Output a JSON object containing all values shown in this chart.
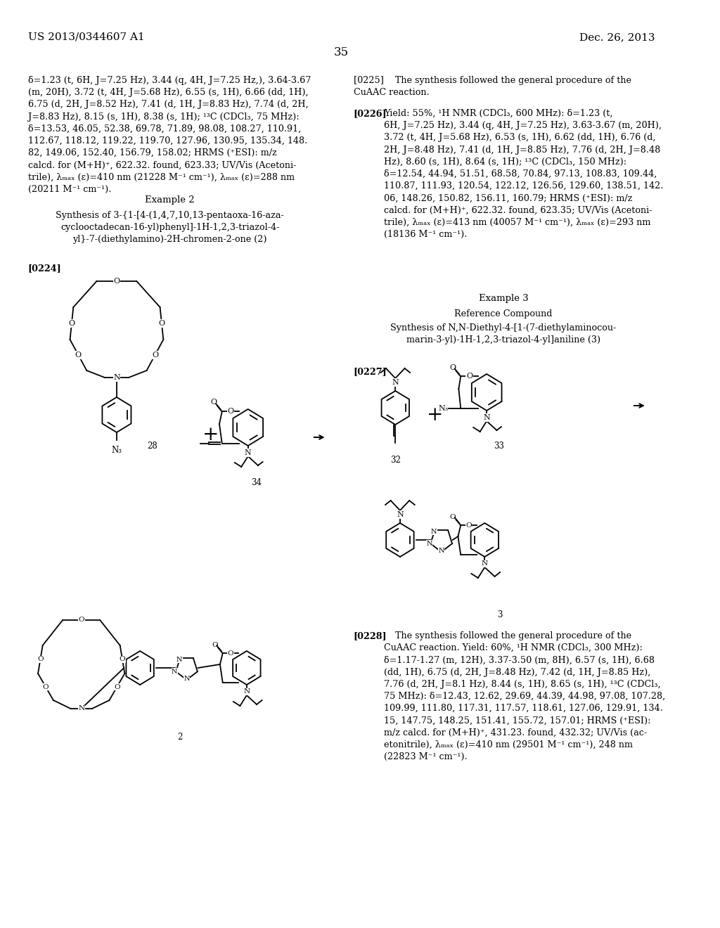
{
  "page_number": "35",
  "header_left": "US 2013/0344607 A1",
  "header_right": "Dec. 26, 2013",
  "bg": "#ffffff",
  "tc": "#000000",
  "left_col_text1": "δ=1.23 (t, 6H, J=7.25 Hz), 3.44 (q, 4H, J=7.25 Hz,), 3.64-3.67\n(m, 20H), 3.72 (t, 4H, J=5.68 Hz), 6.55 (s, 1H), 6.66 (dd, 1H),\n6.75 (d, 2H, J=8.52 Hz), 7.41 (d, 1H, J=8.83 Hz), 7.74 (d, 2H,\nJ=8.83 Hz), 8.15 (s, 1H), 8.38 (s, 1H); ¹³C (CDCl₃, 75 MHz):\nδ=13.53, 46.05, 52.38, 69.78, 71.89, 98.08, 108.27, 110.91,\n112.67, 118.12, 119.22, 119.70, 127.96, 130.95, 135.34, 148.\n82, 149.06, 152.40, 156.79, 158.02; HRMS (⁺ESI): m/z\ncalcd. for (M+H)⁺, 622.32. found, 623.33; UV/Vis (Acetoni-\ntrile), λₘₐₓ (ε)=410 nm (21228 M⁻¹ cm⁻¹), λₘₐₓ (ε)=288 nm\n(20211 M⁻¹ cm⁻¹).",
  "example2_title": "Example 2",
  "example2_sub": "Synthesis of 3-{1-[4-(1,4,7,10,13-pentaoxa-16-aza-\ncyclooctadecan-16-yl)phenyl]-1H-1,2,3-triazol-4-\nyl}-7-(diethylamino)-2H-chromen-2-one (2)",
  "para_0224": "[0224]",
  "right_col_text1": "[0225]    The synthesis followed the general procedure of the\nCuAAC reaction.",
  "para_0226": "[0226]",
  "right_col_text2": "Yield: 55%, ¹H NMR (CDCl₃, 600 MHz): δ=1.23 (t,\n6H, J=7.25 Hz), 3.44 (q, 4H, J=7.25 Hz), 3.63-3.67 (m, 20H),\n3.72 (t, 4H, J=5.68 Hz), 6.53 (s, 1H), 6.62 (dd, 1H), 6.76 (d,\n2H, J=8.48 Hz), 7.41 (d, 1H, J=8.85 Hz), 7.76 (d, 2H, J=8.48\nHz), 8.60 (s, 1H), 8.64 (s, 1H); ¹³C (CDCl₃, 150 MHz):\nδ=12.54, 44.94, 51.51, 68.58, 70.84, 97.13, 108.83, 109.44,\n110.87, 111.93, 120.54, 122.12, 126.56, 129.60, 138.51, 142.\n06, 148.26, 150.82, 156.11, 160.79; HRMS (⁺ESI): m/z\ncalcd. for (M+H)⁺, 622.32. found, 623.35; UV/Vis (Acetoni-\ntrile), λₘₐₓ (ε)=413 nm (40057 M⁻¹ cm⁻¹), λₘₐₓ (ε)=293 nm\n(18136 M⁻¹ cm⁻¹).",
  "example3_title": "Example 3",
  "example3_sub1": "Reference Compound",
  "example3_sub2": "Synthesis of N,N-Diethyl-4-[1-(7-diethylaminocou-\nmarin-3-yl)-1H-1,2,3-triazol-4-yl]aniline (3)",
  "para_0227": "[0227]",
  "para_0228": "[0228]",
  "right_col_text3": "    The synthesis followed the general procedure of the\nCuAAC reaction. Yield: 60%, ¹H NMR (CDCl₃, 300 MHz):\nδ=1.17-1.27 (m, 12H), 3.37-3.50 (m, 8H), 6.57 (s, 1H), 6.68\n(dd, 1H), 6.75 (d, 2H, J=8.48 Hz), 7.42 (d, 1H, J=8.85 Hz),\n7.76 (d, 2H, J=8.1 Hz), 8.44 (s, 1H), 8.65 (s, 1H), ¹³C (CDCl₃,\n75 MHz): δ=12.43, 12.62, 29.69, 44.39, 44.98, 97.08, 107.28,\n109.99, 111.80, 117.31, 117.57, 118.61, 127.06, 129.91, 134.\n15, 147.75, 148.25, 151.41, 155.72, 157.01; HRMS (⁺ESI):\nm/z calcd. for (M+H)⁺, 431.23. found, 432.32; UV/Vis (ac-\netonitrile), λₘₐₓ (ε)=410 nm (29501 M⁻¹ cm⁻¹), 248 nm\n(22823 M⁻¹ cm⁻¹).",
  "label_28": "28",
  "label_34": "34",
  "label_2": "2",
  "label_32": "32",
  "label_33": "33",
  "label_3": "3"
}
